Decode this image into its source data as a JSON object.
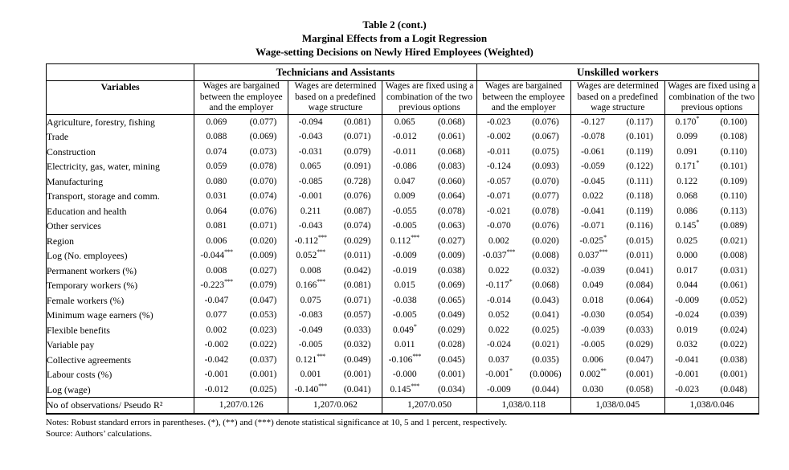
{
  "title": {
    "line1": "Table 2 (cont.)",
    "line2": "Marginal Effects from a Logit Regression",
    "line3": "Wage-setting Decisions on Newly Hired Employees (Weighted)"
  },
  "table": {
    "variables_header": "Variables",
    "group_headers": [
      "Technicians and Assistants",
      "Unskilled workers"
    ],
    "sub_headers": [
      "Wages are bargained between the employee and the employer",
      "Wages are determined based on a predefined wage structure",
      "Wages are fixed using a combination of the two previous options"
    ],
    "rows": [
      {
        "label": "Agriculture, forestry, fishing",
        "cells": [
          [
            "0.069",
            "(0.077)"
          ],
          [
            "-0.094",
            "(0.081)"
          ],
          [
            "0.065",
            "(0.068)"
          ],
          [
            "-0.023",
            "(0.076)"
          ],
          [
            "-0.127",
            "(0.117)"
          ],
          [
            "0.170*",
            "(0.100)"
          ]
        ]
      },
      {
        "label": "Trade",
        "cells": [
          [
            "0.088",
            "(0.069)"
          ],
          [
            "-0.043",
            "(0.071)"
          ],
          [
            "-0.012",
            "(0.061)"
          ],
          [
            "-0.002",
            "(0.067)"
          ],
          [
            "-0.078",
            "(0.101)"
          ],
          [
            "0.099",
            "(0.108)"
          ]
        ]
      },
      {
        "label": "Construction",
        "cells": [
          [
            "0.074",
            "(0.073)"
          ],
          [
            "-0.031",
            "(0.079)"
          ],
          [
            "-0.011",
            "(0.068)"
          ],
          [
            "-0.011",
            "(0.075)"
          ],
          [
            "-0.061",
            "(0.119)"
          ],
          [
            "0.091",
            "(0.110)"
          ]
        ]
      },
      {
        "label": "Electricity, gas, water, mining",
        "cells": [
          [
            "0.059",
            "(0.078)"
          ],
          [
            "0.065",
            "(0.091)"
          ],
          [
            "-0.086",
            "(0.083)"
          ],
          [
            "-0.124",
            "(0.093)"
          ],
          [
            "-0.059",
            "(0.122)"
          ],
          [
            "0.171*",
            "(0.101)"
          ]
        ]
      },
      {
        "label": "Manufacturing",
        "cells": [
          [
            "0.080",
            "(0.070)"
          ],
          [
            "-0.085",
            "(0.728)"
          ],
          [
            "0.047",
            "(0.060)"
          ],
          [
            "-0.057",
            "(0.070)"
          ],
          [
            "-0.045",
            "(0.111)"
          ],
          [
            "0.122",
            "(0.109)"
          ]
        ]
      },
      {
        "label": "Transport, storage and comm.",
        "cells": [
          [
            "0.031",
            "(0.074)"
          ],
          [
            "-0.001",
            "(0.076)"
          ],
          [
            "0.009",
            "(0.064)"
          ],
          [
            "-0.071",
            "(0.077)"
          ],
          [
            "0.022",
            "(0.118)"
          ],
          [
            "0.068",
            "(0.110)"
          ]
        ]
      },
      {
        "label": "Education and health",
        "cells": [
          [
            "0.064",
            "(0.076)"
          ],
          [
            "0.211",
            "(0.087)"
          ],
          [
            "-0.055",
            "(0.078)"
          ],
          [
            "-0.021",
            "(0.078)"
          ],
          [
            "-0.041",
            "(0.119)"
          ],
          [
            "0.086",
            "(0.113)"
          ]
        ]
      },
      {
        "label": "Other services",
        "cells": [
          [
            "0.081",
            "(0.071)"
          ],
          [
            "-0.043",
            "(0.074)"
          ],
          [
            "-0.005",
            "(0.063)"
          ],
          [
            "-0.070",
            "(0.076)"
          ],
          [
            "-0.071",
            "(0.116)"
          ],
          [
            "0.145*",
            "(0.089)"
          ]
        ]
      },
      {
        "label": "Region",
        "cells": [
          [
            "0.006",
            "(0.020)"
          ],
          [
            "-0.112***",
            "(0.029)"
          ],
          [
            "0.112***",
            "(0.027)"
          ],
          [
            "0.002",
            "(0.020)"
          ],
          [
            "-0.025*",
            "(0.015)"
          ],
          [
            "0.025",
            "(0.021)"
          ]
        ]
      },
      {
        "label": "Log (No. employees)",
        "cells": [
          [
            "-0.044***",
            "(0.009)"
          ],
          [
            "0.052***",
            "(0.011)"
          ],
          [
            "-0.009",
            "(0.009)"
          ],
          [
            "-0.037***",
            "(0.008)"
          ],
          [
            "0.037***",
            "(0.011)"
          ],
          [
            "0.000",
            "(0.008)"
          ]
        ]
      },
      {
        "label": "Permanent workers (%)",
        "cells": [
          [
            "0.008",
            "(0.027)"
          ],
          [
            "0.008",
            "(0.042)"
          ],
          [
            "-0.019",
            "(0.038)"
          ],
          [
            "0.022",
            "(0.032)"
          ],
          [
            "-0.039",
            "(0.041)"
          ],
          [
            "0.017",
            "(0.031)"
          ]
        ]
      },
      {
        "label": "Temporary workers (%)",
        "cells": [
          [
            "-0.223***",
            "(0.079)"
          ],
          [
            "0.166***",
            "(0.081)"
          ],
          [
            "0.015",
            "(0.069)"
          ],
          [
            "-0.117*",
            "(0.068)"
          ],
          [
            "0.049",
            "(0.084)"
          ],
          [
            "0.044",
            "(0.061)"
          ]
        ]
      },
      {
        "label": "Female workers (%)",
        "cells": [
          [
            "-0.047",
            "(0.047)"
          ],
          [
            "0.075",
            "(0.071)"
          ],
          [
            "-0.038",
            "(0.065)"
          ],
          [
            "-0.014",
            "(0.043)"
          ],
          [
            "0.018",
            "(0.064)"
          ],
          [
            "-0.009",
            "(0.052)"
          ]
        ]
      },
      {
        "label": "Minimum wage earners (%)",
        "cells": [
          [
            "0.077",
            "(0.053)"
          ],
          [
            "-0.083",
            "(0.057)"
          ],
          [
            "-0.005",
            "(0.049)"
          ],
          [
            "0.052",
            "(0.041)"
          ],
          [
            "-0.030",
            "(0.054)"
          ],
          [
            "-0.024",
            "(0.039)"
          ]
        ]
      },
      {
        "label": "Flexible benefits",
        "cells": [
          [
            "0.002",
            "(0.023)"
          ],
          [
            "-0.049",
            "(0.033)"
          ],
          [
            "0.049*",
            "(0.029)"
          ],
          [
            "0.022",
            "(0.025)"
          ],
          [
            "-0.039",
            "(0.033)"
          ],
          [
            "0.019",
            "(0.024)"
          ]
        ]
      },
      {
        "label": "Variable pay",
        "cells": [
          [
            "-0.002",
            "(0.022)"
          ],
          [
            "-0.005",
            "(0.032)"
          ],
          [
            "0.011",
            "(0.028)"
          ],
          [
            "-0.024",
            "(0.021)"
          ],
          [
            "-0.005",
            "(0.029)"
          ],
          [
            "0.032",
            "(0.022)"
          ]
        ]
      },
      {
        "label": "Collective agreements",
        "cells": [
          [
            "-0.042",
            "(0.037)"
          ],
          [
            "0.121***",
            "(0.049)"
          ],
          [
            "-0.106***",
            "(0.045)"
          ],
          [
            "0.037",
            "(0.035)"
          ],
          [
            "0.006",
            "(0.047)"
          ],
          [
            "-0.041",
            "(0.038)"
          ]
        ]
      },
      {
        "label": "Labour costs (%)",
        "cells": [
          [
            "-0.001",
            "(0.001)"
          ],
          [
            "0.001",
            "(0.001)"
          ],
          [
            "-0.000",
            "(0.001)"
          ],
          [
            "-0.001*",
            "(0.0006)"
          ],
          [
            "0.002**",
            "(0.001)"
          ],
          [
            "-0.001",
            "(0.001)"
          ]
        ]
      },
      {
        "label": "Log (wage)",
        "cells": [
          [
            "-0.012",
            "(0.025)"
          ],
          [
            "-0.140***",
            "(0.041)"
          ],
          [
            "0.145***",
            "(0.034)"
          ],
          [
            "-0.009",
            "(0.044)"
          ],
          [
            "0.030",
            "(0.058)"
          ],
          [
            "-0.023",
            "(0.048)"
          ]
        ]
      }
    ],
    "obs_row": {
      "label": "No of observations/ Pseudo R²",
      "values": [
        "1,207/0.126",
        "1,207/0.062",
        "1,207/0.050",
        "1,038/0.118",
        "1,038/0.045",
        "1,038/0.046"
      ]
    }
  },
  "notes": "Notes: Robust standard errors in parentheses. (*), (**) and (***) denote statistical significance at 10, 5 and 1 percent, respectively.",
  "source": "Source: Authors’ calculations."
}
